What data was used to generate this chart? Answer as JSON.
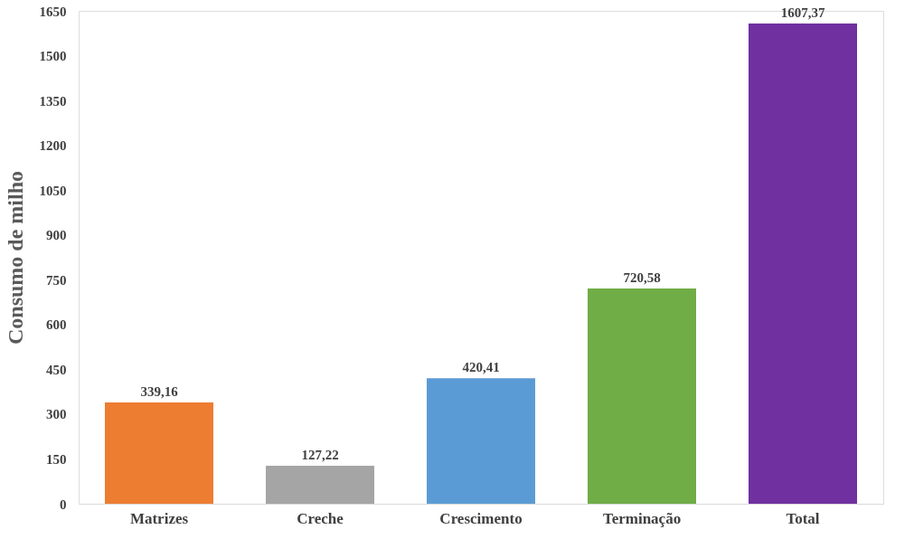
{
  "chart_data": {
    "type": "bar",
    "ylabel": "Consumo de milho",
    "categories": [
      "Matrizes",
      "Creche",
      "Crescimento",
      "Terminação",
      "Total"
    ],
    "values": [
      339.16,
      127.22,
      420.41,
      720.58,
      1607.37
    ],
    "colors": [
      "#ed7d31",
      "#a5a5a5",
      "#5b9bd5",
      "#70ad47",
      "#7030a0"
    ],
    "value_labels": [
      "339,16",
      "127,22",
      "420,41",
      "720,58",
      "1607,37"
    ],
    "ylim": [
      0,
      1650
    ],
    "yticks": [
      0,
      150,
      300,
      450,
      600,
      750,
      900,
      1050,
      1200,
      1350,
      1500,
      1650
    ],
    "grid": false
  }
}
